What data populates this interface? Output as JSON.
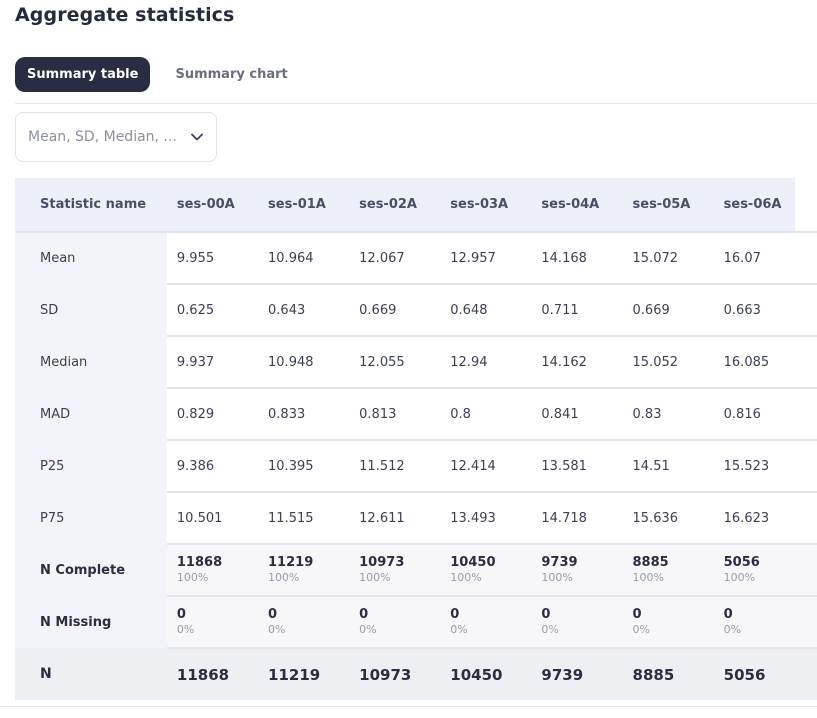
{
  "page": {
    "title": "Aggregate statistics"
  },
  "tabs": [
    {
      "label": "Summary table",
      "active": true
    },
    {
      "label": "Summary chart",
      "active": false
    }
  ],
  "stat_select": {
    "value": "Mean, SD, Median, ...",
    "icon": "chevron-down-icon"
  },
  "table": {
    "headers": [
      "Statistic name",
      "ses-00A",
      "ses-01A",
      "ses-02A",
      "ses-03A",
      "ses-04A",
      "ses-05A",
      "ses-06A"
    ],
    "rows": [
      {
        "name": "Mean",
        "values": [
          "9.955",
          "10.964",
          "12.067",
          "12.957",
          "14.168",
          "15.072",
          "16.07"
        ]
      },
      {
        "name": "SD",
        "values": [
          "0.625",
          "0.643",
          "0.669",
          "0.648",
          "0.711",
          "0.669",
          "0.663"
        ]
      },
      {
        "name": "Median",
        "values": [
          "9.937",
          "10.948",
          "12.055",
          "12.94",
          "14.162",
          "15.052",
          "16.085"
        ]
      },
      {
        "name": "MAD",
        "values": [
          "0.829",
          "0.833",
          "0.813",
          "0.8",
          "0.841",
          "0.83",
          "0.816"
        ]
      },
      {
        "name": "P25",
        "values": [
          "9.386",
          "10.395",
          "11.512",
          "12.414",
          "13.581",
          "14.51",
          "15.523"
        ]
      },
      {
        "name": "P75",
        "values": [
          "10.501",
          "11.515",
          "12.611",
          "13.493",
          "14.718",
          "15.636",
          "16.623"
        ]
      }
    ],
    "n_complete": {
      "name": "N Complete",
      "values": [
        "11868",
        "11219",
        "10973",
        "10450",
        "9739",
        "8885",
        "5056"
      ],
      "percents": [
        "100%",
        "100%",
        "100%",
        "100%",
        "100%",
        "100%",
        "100%"
      ]
    },
    "n_missing": {
      "name": "N Missing",
      "values": [
        "0",
        "0",
        "0",
        "0",
        "0",
        "0",
        "0"
      ],
      "percents": [
        "0%",
        "0%",
        "0%",
        "0%",
        "0%",
        "0%",
        "0%"
      ]
    },
    "n_total": {
      "name": "N",
      "values": [
        "11868",
        "11219",
        "10973",
        "10450",
        "9739",
        "8885",
        "5056"
      ]
    }
  },
  "colors": {
    "accent": "#2a2c44",
    "header_bg": "#eef0f9",
    "name_col_bg": "#f3f4fa"
  }
}
